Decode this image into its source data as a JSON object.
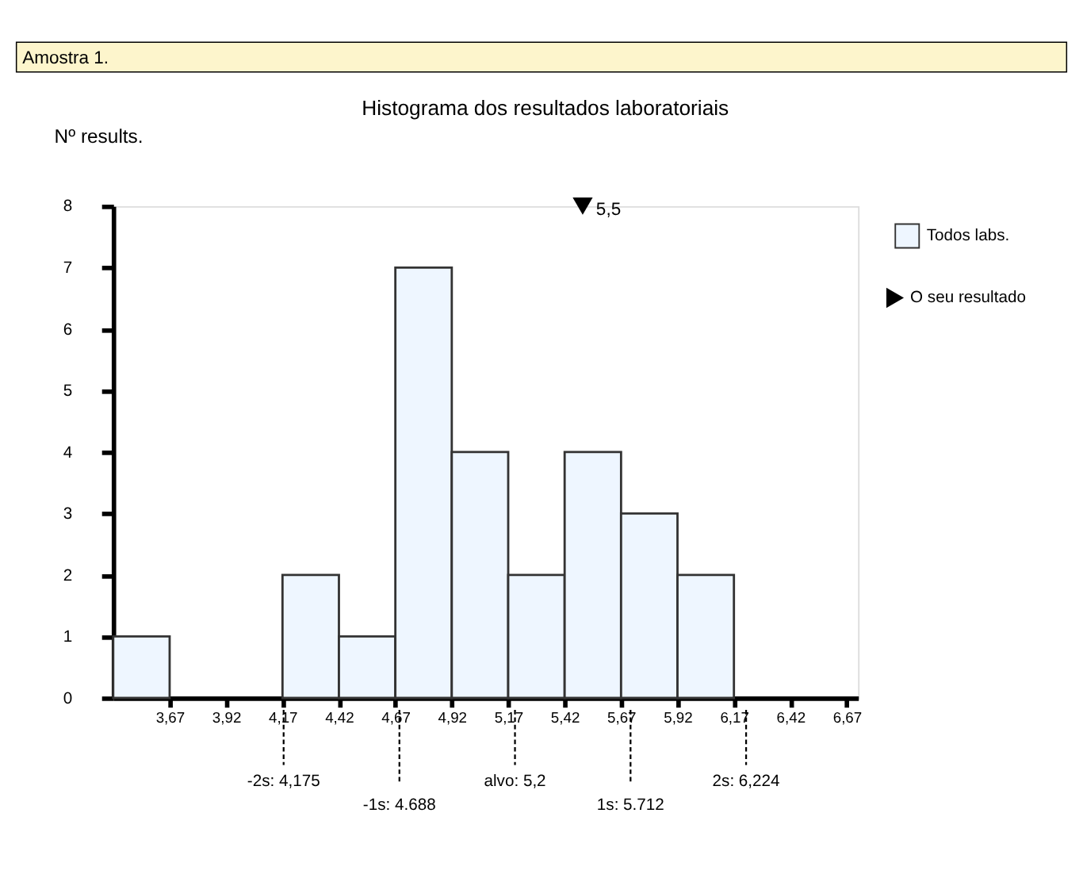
{
  "chart_data": {
    "type": "histogram",
    "title": "Histograma dos resultados laboratoriais",
    "ylabel": "Nº results.",
    "bins": [
      3.42,
      3.67,
      3.92,
      4.17,
      4.42,
      4.67,
      4.92,
      5.17,
      5.42,
      5.67,
      5.92,
      6.17
    ],
    "series": [
      {
        "name": "Todos labs.",
        "color": "#eef6ff",
        "values": [
          1,
          0,
          0,
          2,
          1,
          7,
          4,
          2,
          4,
          3,
          2
        ]
      },
      {
        "name": "O seu resultado",
        "type": "scatter",
        "marker": "triangle",
        "color": "#000000",
        "x": [
          5.5
        ],
        "values": [
          8
        ]
      }
    ],
    "xlim": [
      3.42,
      6.72
    ],
    "xticks": [
      {
        "value": 3.67,
        "label": "3,67"
      },
      {
        "value": 3.92,
        "label": "3,92"
      },
      {
        "value": 4.17,
        "label": "4,17"
      },
      {
        "value": 4.42,
        "label": "4,42"
      },
      {
        "value": 4.67,
        "label": "4,67"
      },
      {
        "value": 4.92,
        "label": "4,92"
      },
      {
        "value": 5.17,
        "label": "5,17"
      },
      {
        "value": 5.42,
        "label": "5,42"
      },
      {
        "value": 5.67,
        "label": "5,67"
      },
      {
        "value": 5.92,
        "label": "5,92"
      },
      {
        "value": 6.17,
        "label": "6,17"
      },
      {
        "value": 6.42,
        "label": "6,42"
      },
      {
        "value": 6.67,
        "label": "6,67"
      }
    ],
    "ylim": [
      0,
      8
    ],
    "yticks": [
      0,
      1,
      2,
      3,
      4,
      5,
      6,
      7,
      8
    ],
    "grid": false,
    "legend": "right",
    "ref_lines": [
      {
        "axis": "x",
        "value": 4.175,
        "label": "-2s: 4,175",
        "line_style": "dashed"
      },
      {
        "axis": "x",
        "value": 4.688,
        "label": "-1s: 4.688",
        "line_style": "dashed"
      },
      {
        "axis": "x",
        "value": 5.2,
        "label": "alvo: 5,2",
        "line_style": "dashed"
      },
      {
        "axis": "x",
        "value": 5.712,
        "label": "1s: 5.712",
        "line_style": "dashed"
      },
      {
        "axis": "x",
        "value": 6.224,
        "label": "2s: 6,224",
        "line_style": "dashed"
      }
    ],
    "annotations": [
      "Amostra 1.",
      {
        "text": "5,5",
        "x": 5.5,
        "y": 8
      }
    ]
  }
}
